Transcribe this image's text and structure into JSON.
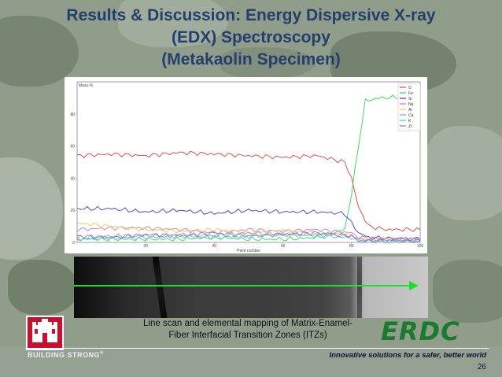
{
  "slide": {
    "title_line1": "Results & Discussion: Energy Dispersive X-ray",
    "title_line2": "(EDX) Spectroscopy",
    "title_line3": "(Metakaolin Specimen)",
    "caption_line1": "Line scan and elemental mapping of Matrix-Enamel-",
    "caption_line2": "Fiber Interfacial Transition Zones (ITZs)",
    "logo_text": "ERDC",
    "building_strong": "BUILDING STRONG",
    "building_strong_mark": "®",
    "tagline": "Innovative solutions for a safer, better world",
    "page_number": "26"
  },
  "chart_data": {
    "type": "line",
    "ylabel": "Mass-%",
    "xlabel": "Point number",
    "xlim": [
      0,
      100
    ],
    "ylim": [
      0,
      100
    ],
    "xticks": [
      "20",
      "40",
      "60",
      "80",
      "100"
    ],
    "yticks": [
      "0",
      "20",
      "40",
      "60",
      "80"
    ],
    "legend": [
      "O",
      "Fe",
      "Si",
      "Na",
      "Al",
      "Ca",
      "K",
      "Zr"
    ],
    "series": [
      {
        "name": "O",
        "color": "#e23b3b",
        "x": [
          0,
          10,
          20,
          30,
          40,
          50,
          60,
          70,
          78,
          80,
          82,
          85,
          90,
          100
        ],
        "values": [
          54,
          55,
          54,
          56,
          55,
          54,
          53,
          54,
          50,
          40,
          22,
          10,
          8,
          8
        ]
      },
      {
        "name": "Fe",
        "color": "#2bd84a",
        "x": [
          0,
          10,
          20,
          30,
          40,
          50,
          60,
          70,
          78,
          80,
          82,
          84,
          88,
          100
        ],
        "values": [
          2,
          2,
          2,
          2,
          3,
          2,
          2,
          3,
          8,
          30,
          60,
          88,
          90,
          91
        ]
      },
      {
        "name": "Si",
        "color": "#3a3ac8",
        "x": [
          0,
          10,
          20,
          30,
          40,
          50,
          60,
          70,
          78,
          80,
          82,
          85,
          100
        ],
        "values": [
          21,
          21,
          19,
          20,
          18,
          20,
          19,
          19,
          18,
          12,
          6,
          3,
          2
        ]
      },
      {
        "name": "Na",
        "color": "#d070d0",
        "x": [
          0,
          10,
          20,
          30,
          40,
          50,
          60,
          70,
          80,
          82,
          100
        ],
        "values": [
          8,
          9,
          9,
          8,
          6,
          8,
          7,
          8,
          6,
          3,
          2
        ]
      },
      {
        "name": "Al",
        "color": "#e0d040",
        "x": [
          0,
          10,
          20,
          30,
          40,
          50,
          60,
          70,
          80,
          82,
          100
        ],
        "values": [
          12,
          10,
          8,
          7,
          8,
          6,
          7,
          6,
          5,
          2,
          1
        ]
      },
      {
        "name": "Ca",
        "color": "#a0a0a0",
        "x": [
          0,
          10,
          20,
          30,
          40,
          50,
          60,
          70,
          80,
          82,
          100
        ],
        "values": [
          3,
          4,
          4,
          5,
          4,
          6,
          5,
          5,
          4,
          2,
          1
        ]
      },
      {
        "name": "K",
        "color": "#40c8e0",
        "x": [
          0,
          10,
          20,
          30,
          40,
          50,
          60,
          70,
          80,
          82,
          100
        ],
        "values": [
          2,
          3,
          3,
          4,
          3,
          4,
          5,
          4,
          3,
          1,
          1
        ]
      },
      {
        "name": "Zr",
        "color": "#9a6ad8",
        "x": [
          0,
          10,
          20,
          30,
          40,
          50,
          60,
          70,
          80,
          82,
          100
        ],
        "values": [
          4,
          3,
          5,
          4,
          6,
          4,
          5,
          6,
          4,
          1,
          1
        ]
      }
    ]
  }
}
